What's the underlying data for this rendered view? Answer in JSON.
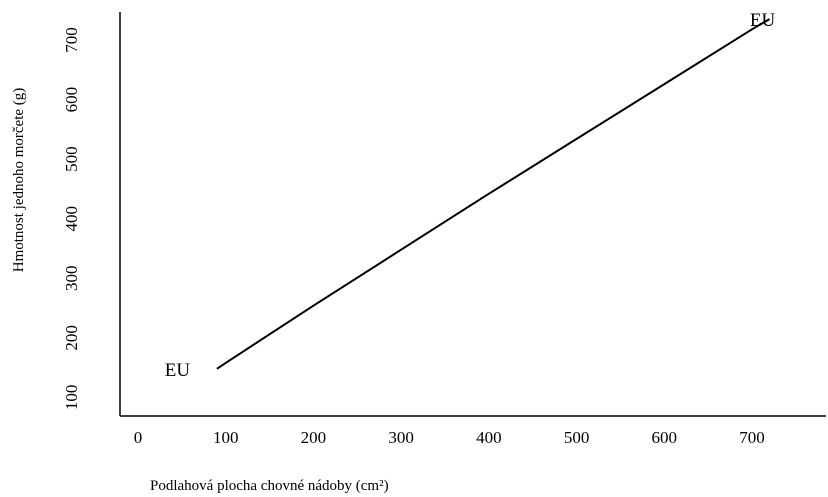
{
  "chart_data": {
    "type": "line",
    "title": "",
    "xlabel": "Podlahová plocha chovné nádoby (cm²)",
    "ylabel": "Hmotnost jednoho morčete (g)",
    "xlim": [
      0,
      750
    ],
    "ylim": [
      0,
      750
    ],
    "x_ticks": [
      "0",
      "100",
      "200",
      "300",
      "400",
      "500",
      "600",
      "700"
    ],
    "y_ticks": [
      "100",
      "200",
      "300",
      "400",
      "500",
      "600",
      "700"
    ],
    "grid": false,
    "series": [
      {
        "x": [
          90,
          100,
          200,
          300,
          400,
          500,
          600,
          700,
          720
        ],
        "y": [
          148,
          158,
          254,
          348,
          442,
          534,
          626,
          718,
          735
        ]
      }
    ],
    "annotations": [
      {
        "text": "EU",
        "x": 45,
        "y": 148
      },
      {
        "text": "EU",
        "x": 712,
        "y": 735
      }
    ]
  }
}
